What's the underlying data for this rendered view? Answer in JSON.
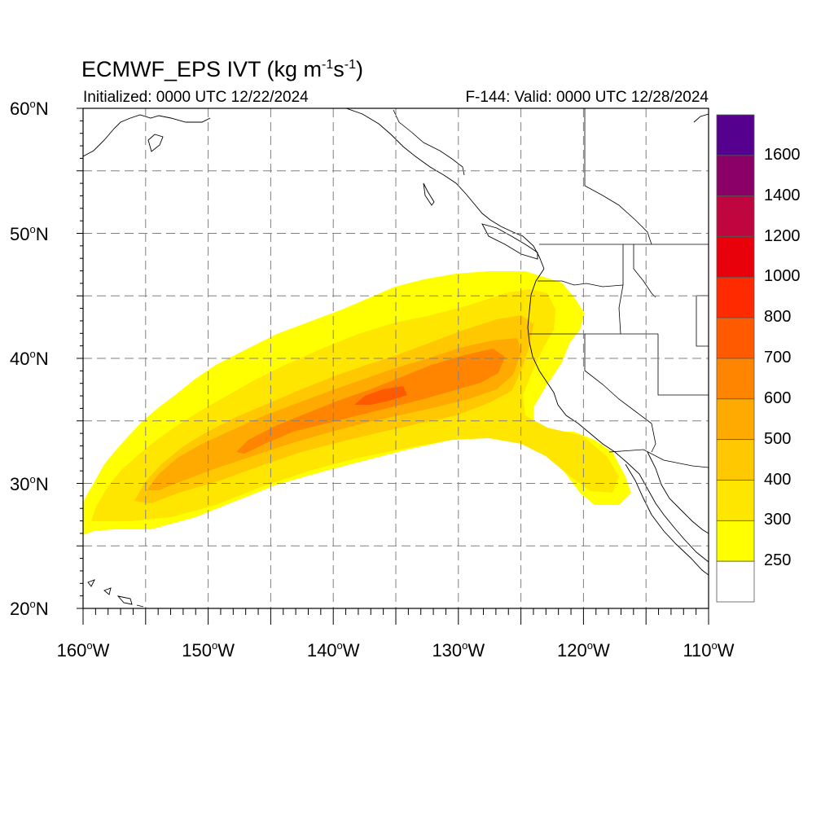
{
  "header": {
    "title_main": "ECMWF_EPS IVT (kg m",
    "title_sup1": "-1",
    "title_mid": "s",
    "title_sup2": "-1",
    "title_end": ")",
    "initialized": "Initialized: 0000 UTC 12/22/2024",
    "valid": "F-144: Valid: 0000 UTC 12/28/2024"
  },
  "map": {
    "lon_range": [
      -160,
      -110
    ],
    "lat_range": [
      20,
      60
    ],
    "lat_ticks": [
      {
        "num": "60",
        "hemi": "N",
        "lat": 60
      },
      {
        "num": "50",
        "hemi": "N",
        "lat": 50
      },
      {
        "num": "40",
        "hemi": "N",
        "lat": 40
      },
      {
        "num": "30",
        "hemi": "N",
        "lat": 30
      },
      {
        "num": "20",
        "hemi": "N",
        "lat": 20
      }
    ],
    "lon_ticks": [
      {
        "num": "160",
        "hemi": "W",
        "lon": -160
      },
      {
        "num": "150",
        "hemi": "W",
        "lon": -150
      },
      {
        "num": "140",
        "hemi": "W",
        "lon": -140
      },
      {
        "num": "130",
        "hemi": "W",
        "lon": -130
      },
      {
        "num": "120",
        "hemi": "W",
        "lon": -120
      },
      {
        "num": "110",
        "hemi": "W",
        "lon": -110
      }
    ],
    "grid_step": 5
  },
  "colorbar": {
    "levels": [
      "1600",
      "1400",
      "1200",
      "1000",
      "800",
      "700",
      "600",
      "500",
      "400",
      "300",
      "250"
    ],
    "colors": [
      "#55008f",
      "#8b0066",
      "#c0063e",
      "#e8000b",
      "#ff2a00",
      "#ff5a00",
      "#ff8400",
      "#ffaa00",
      "#ffc800",
      "#ffe600",
      "#ffff00",
      "#ffffff"
    ]
  },
  "field": {
    "colors": {
      "250": "#ffff00",
      "300": "#ffe600",
      "400": "#ffc800",
      "500": "#ffaa00",
      "600": "#ff8400",
      "700": "#ff5a00"
    }
  }
}
